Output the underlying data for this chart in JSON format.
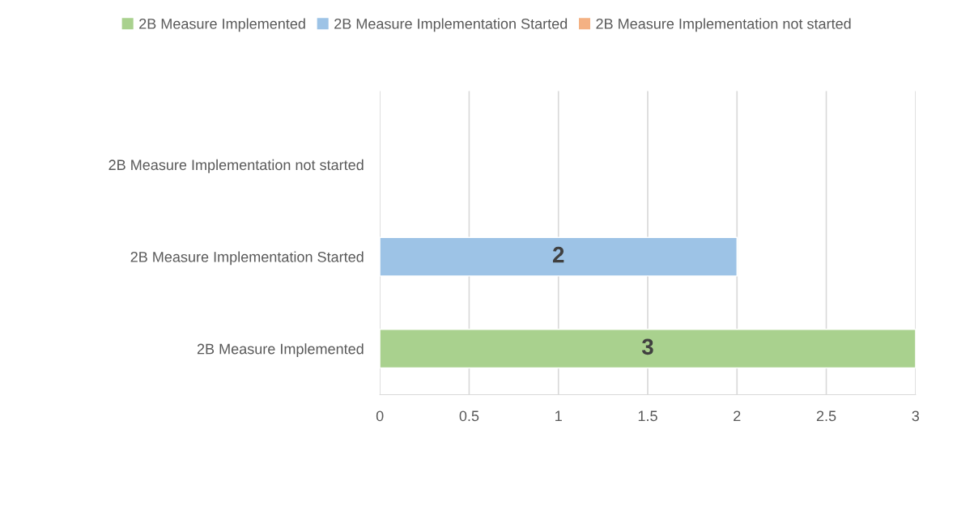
{
  "chart_data": {
    "type": "bar",
    "orientation": "horizontal",
    "stacked": true,
    "categories": [
      "2B Measure Implementation not started",
      "2B Measure Implementation Started",
      "2B Measure Implemented"
    ],
    "series": [
      {
        "name": "2B Measure Implemented",
        "color": "#a9d18e",
        "values": [
          null,
          null,
          3
        ],
        "value_labels": [
          null,
          null,
          "3"
        ]
      },
      {
        "name": "2B Measure Implementation Started",
        "color": "#9dc3e6",
        "values": [
          null,
          2,
          null
        ],
        "value_labels": [
          null,
          "2",
          null
        ]
      },
      {
        "name": "2B Measure Implementation not started",
        "color": "#f4b183",
        "values": [
          null,
          null,
          null
        ],
        "value_labels": [
          null,
          null,
          null
        ]
      }
    ],
    "xlim": [
      0,
      3
    ],
    "xticks": [
      0,
      0.5,
      1,
      1.5,
      2,
      2.5,
      3
    ],
    "grid": "x",
    "legend": "top"
  }
}
